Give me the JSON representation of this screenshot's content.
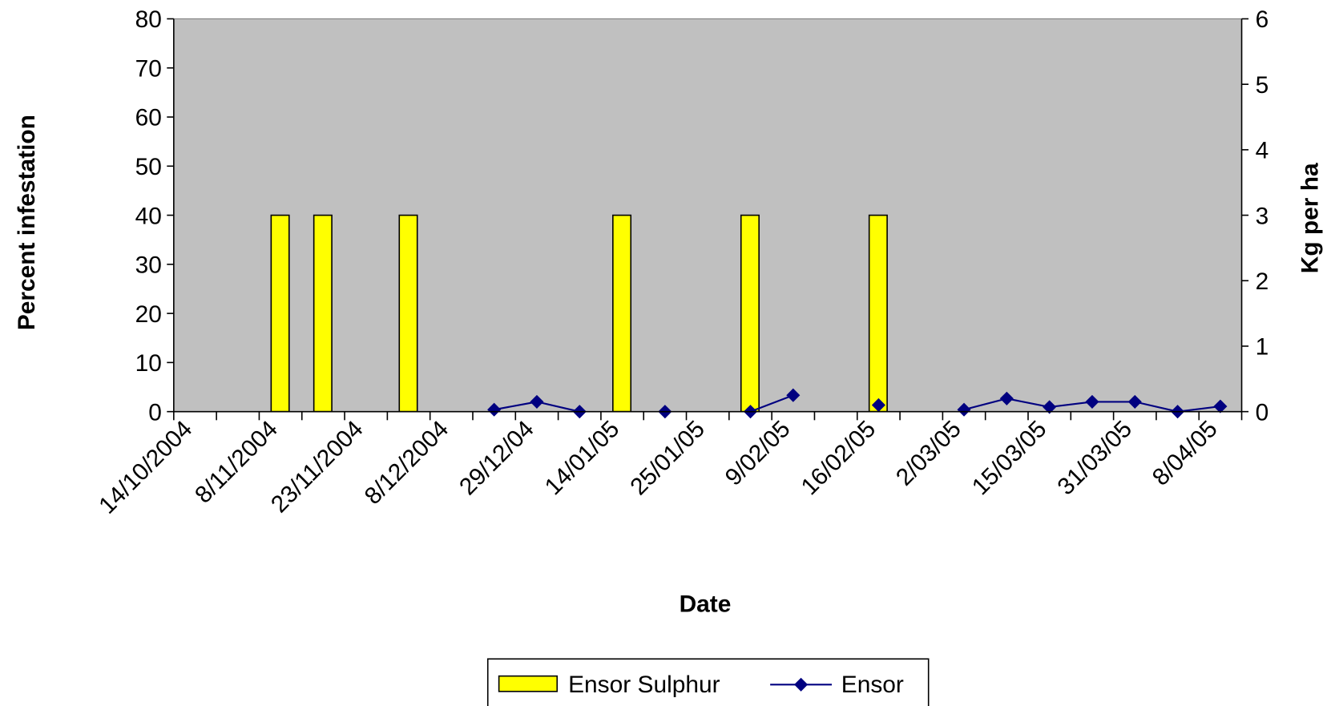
{
  "chart_data": {
    "type": "bar_line",
    "categories": [
      "14/10/2004",
      null,
      "8/11/2004",
      null,
      "23/11/2004",
      null,
      "8/12/2004",
      null,
      "29/12/04",
      null,
      "14/01/05",
      null,
      "25/01/05",
      null,
      "9/02/05",
      null,
      "16/02/05",
      null,
      "2/03/05",
      null,
      "15/03/05",
      null,
      "31/03/05",
      null,
      "8/04/05"
    ],
    "series": [
      {
        "name": "Ensor Sulphur",
        "type": "bar",
        "color": "#ffff00",
        "values": [
          null,
          null,
          40,
          40,
          null,
          40,
          null,
          null,
          null,
          null,
          40,
          null,
          null,
          40,
          null,
          null,
          40,
          null,
          null,
          null,
          null,
          null,
          null,
          null,
          null
        ]
      },
      {
        "name": "Ensor",
        "type": "line",
        "axis": "y2",
        "color": "#000080",
        "values": [
          null,
          null,
          null,
          null,
          null,
          null,
          null,
          0.03,
          0.15,
          0,
          null,
          0,
          null,
          0,
          0.25,
          null,
          0.1,
          null,
          0.03,
          0.2,
          0.07,
          0.15,
          0.15,
          0,
          0.08
        ]
      }
    ],
    "xlabel": "Date",
    "ylabel": "Percent infestation",
    "y2label": "Kg per ha",
    "ylim": [
      0,
      80
    ],
    "yticks": [
      0,
      10,
      20,
      30,
      40,
      50,
      60,
      70,
      80
    ],
    "y2lim": [
      0,
      6
    ],
    "y2ticks": [
      0,
      1,
      2,
      3,
      4,
      5,
      6
    ],
    "legend": "bottom",
    "plot_background": "#c0c0c0"
  }
}
